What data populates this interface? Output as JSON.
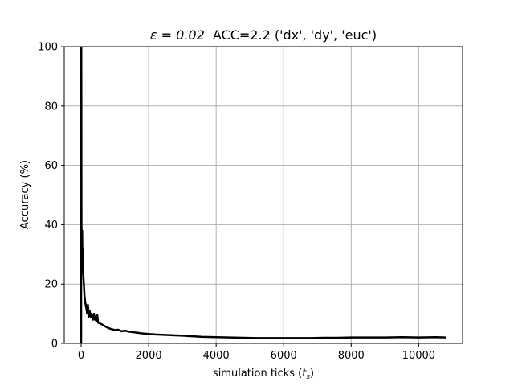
{
  "chart_data": {
    "type": "line",
    "title_prefix": "ε = 0.02",
    "title_suffix": "ACC=2.2 ('dx', 'dy', 'euc')",
    "xlabel": "simulation ticks (",
    "xlabel_var": "t",
    "xlabel_sub": "s",
    "xlabel_close": ")",
    "ylabel": "Accuracy (%)",
    "xlim": [
      -500,
      11300
    ],
    "ylim": [
      0,
      100
    ],
    "xticks": [
      0,
      2000,
      4000,
      6000,
      8000,
      10000
    ],
    "yticks": [
      0,
      20,
      40,
      60,
      80,
      100
    ],
    "grid": true,
    "line_color": "#000000",
    "series": [
      {
        "x": [
          0,
          0,
          5,
          10,
          20,
          30,
          40,
          50,
          60,
          70,
          80,
          100,
          120,
          150,
          180,
          200,
          230,
          250,
          280,
          300,
          330,
          350,
          380,
          400,
          430,
          450,
          480,
          500,
          600,
          700,
          800,
          900,
          1000,
          1100,
          1200,
          1300,
          1400,
          1600,
          1800,
          2000,
          2200,
          2400,
          2600,
          2800,
          3000,
          3300,
          3600,
          4000,
          4400,
          4800,
          5200,
          5600,
          6000,
          6400,
          6800,
          7200,
          7600,
          8000,
          8500,
          9000,
          9500,
          10000,
          10500,
          10800
        ],
        "y": [
          0,
          100,
          100,
          40,
          30,
          38,
          26,
          32,
          24,
          22,
          20,
          16,
          14,
          12,
          10,
          13,
          9,
          11,
          9,
          10,
          9,
          8,
          10,
          8,
          9,
          7.5,
          9.5,
          7,
          6.5,
          5.8,
          5.2,
          4.8,
          4.5,
          4.6,
          4.1,
          4.3,
          4.0,
          3.7,
          3.4,
          3.2,
          3.0,
          2.9,
          2.8,
          2.7,
          2.6,
          2.4,
          2.2,
          2.1,
          2.0,
          1.9,
          1.8,
          1.8,
          1.8,
          1.8,
          1.8,
          1.9,
          1.9,
          2.0,
          2.0,
          2.0,
          2.1,
          2.0,
          2.1,
          2.0
        ]
      }
    ]
  }
}
